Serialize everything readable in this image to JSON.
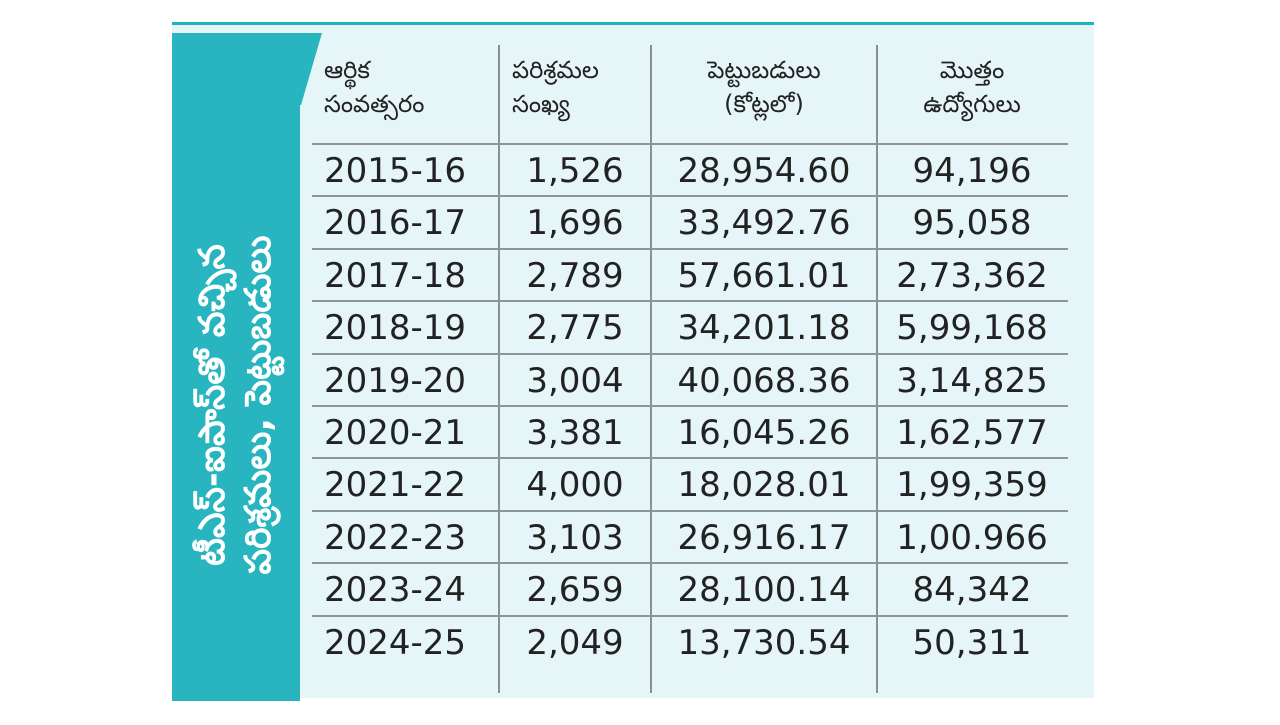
{
  "side_title": {
    "line1": "టీఎస్-ఐపాస్‌తో వచ్చిన",
    "line2": "పరిశ్రమలు, పెట్టుబడులు"
  },
  "chart_data": {
    "type": "table",
    "columns": [
      {
        "line1": "ఆర్థిక",
        "line2": "సంవత్సరం"
      },
      {
        "line1": "పరిశ్రమల",
        "line2": "సంఖ్య"
      },
      {
        "line1": "పెట్టుబడులు",
        "line2": "(కోట్లలో)"
      },
      {
        "line1": "మొత్తం",
        "line2": "ఉద్యోగులు"
      }
    ],
    "rows": [
      {
        "year": "2015-16",
        "industries": "1,526",
        "investment": "28,954.60",
        "employees": "94,196"
      },
      {
        "year": "2016-17",
        "industries": "1,696",
        "investment": "33,492.76",
        "employees": "95,058"
      },
      {
        "year": "2017-18",
        "industries": "2,789",
        "investment": "57,661.01",
        "employees": "2,73,362"
      },
      {
        "year": "2018-19",
        "industries": "2,775",
        "investment": "34,201.18",
        "employees": "5,99,168"
      },
      {
        "year": "2019-20",
        "industries": "3,004",
        "investment": "40,068.36",
        "employees": "3,14,825"
      },
      {
        "year": "2020-21",
        "industries": "3,381",
        "investment": "16,045.26",
        "employees": "1,62,577"
      },
      {
        "year": "2021-22",
        "industries": "4,000",
        "investment": "18,028.01",
        "employees": "1,99,359"
      },
      {
        "year": "2022-23",
        "industries": "3,103",
        "investment": "26,916.17",
        "employees": "1,00.966"
      },
      {
        "year": "2023-24",
        "industries": "2,659",
        "investment": "28,100.14",
        "employees": "84,342"
      },
      {
        "year": "2024-25",
        "industries": "2,049",
        "investment": "13,730.54",
        "employees": "50,311"
      }
    ]
  },
  "colors": {
    "accent": "#28b5bf",
    "background": "#e6f5f7",
    "grid": "#8f9498",
    "text": "#222222"
  }
}
